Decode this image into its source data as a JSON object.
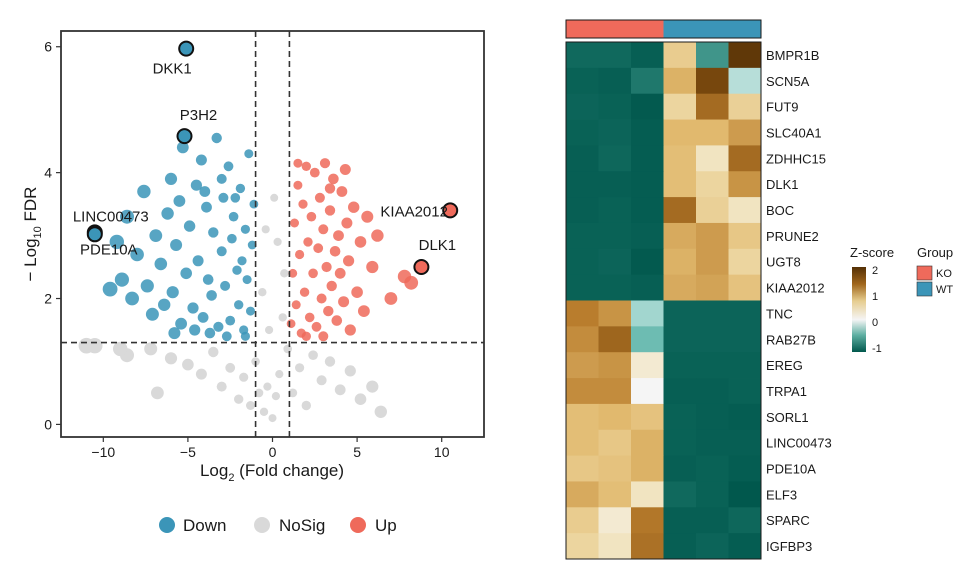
{
  "colors": {
    "down": "#3b95b8",
    "nosig": "#d9d9d9",
    "up": "#ef6a5b",
    "ko": "#ef6a5b",
    "wt": "#3b95b8",
    "heat_low": "#01584d",
    "heat_mid": "#f5f5f5",
    "heat_high": "#543005"
  },
  "chart_data": [
    {
      "type": "scatter",
      "title": "",
      "xlabel_main": "Log",
      "xlabel_sub": "2",
      "xlabel_tail": " (Fold change)",
      "ylabel_lead": "− Log",
      "ylabel_sub": "10",
      "ylabel_tail": " FDR",
      "xlim": [
        -12.5,
        12.5
      ],
      "ylim": [
        -0.2,
        6.25
      ],
      "xticks": [
        -10,
        -5,
        0,
        5,
        10
      ],
      "yticks": [
        0,
        2,
        4,
        6
      ],
      "fc_cutoff": [
        -1,
        1
      ],
      "fdr_cutoff": 1.3,
      "legend": {
        "position": "bottom",
        "entries": [
          {
            "label": "Down",
            "color_key": "down"
          },
          {
            "label": "NoSig",
            "color_key": "nosig"
          },
          {
            "label": "Up",
            "color_key": "up"
          }
        ]
      },
      "series": [
        {
          "name": "Down",
          "points": [
            [
              -10.5,
              3.05
            ],
            [
              -9.6,
              2.15
            ],
            [
              -9.2,
              2.9
            ],
            [
              -8.9,
              2.3
            ],
            [
              -8.6,
              3.3
            ],
            [
              -8.3,
              2.0
            ],
            [
              -8.0,
              2.7
            ],
            [
              -7.6,
              3.7
            ],
            [
              -7.4,
              2.2
            ],
            [
              -7.1,
              1.75
            ],
            [
              -6.9,
              3.0
            ],
            [
              -6.6,
              2.55
            ],
            [
              -6.4,
              1.9
            ],
            [
              -6.2,
              3.35
            ],
            [
              -5.9,
              2.1
            ],
            [
              -5.7,
              2.85
            ],
            [
              -5.5,
              3.55
            ],
            [
              -5.4,
              1.6
            ],
            [
              -5.3,
              4.4
            ],
            [
              -5.2,
              4.58
            ],
            [
              -5.1,
              2.4
            ],
            [
              -4.9,
              3.15
            ],
            [
              -4.7,
              1.85
            ],
            [
              -4.5,
              3.8
            ],
            [
              -4.4,
              2.6
            ],
            [
              -4.2,
              4.2
            ],
            [
              -4.1,
              1.7
            ],
            [
              -3.9,
              3.45
            ],
            [
              -3.8,
              2.3
            ],
            [
              -3.6,
              2.05
            ],
            [
              -3.5,
              3.05
            ],
            [
              -3.3,
              4.55
            ],
            [
              -3.2,
              1.55
            ],
            [
              -3.0,
              2.75
            ],
            [
              -2.9,
              3.6
            ],
            [
              -2.8,
              2.2
            ],
            [
              -2.6,
              4.1
            ],
            [
              -2.5,
              1.65
            ],
            [
              -2.4,
              2.95
            ],
            [
              -2.3,
              3.3
            ],
            [
              -2.1,
              2.45
            ],
            [
              -2.0,
              1.9
            ],
            [
              -1.9,
              3.75
            ],
            [
              -1.8,
              2.6
            ],
            [
              -1.7,
              1.5
            ],
            [
              -1.6,
              3.1
            ],
            [
              -1.5,
              2.3
            ],
            [
              -1.4,
              4.3
            ],
            [
              -1.3,
              1.8
            ],
            [
              -1.2,
              2.85
            ],
            [
              -1.1,
              3.5
            ],
            [
              -6.0,
              3.9
            ],
            [
              -4.0,
              3.7
            ],
            [
              -3.0,
              3.9
            ],
            [
              -2.2,
              3.6
            ],
            [
              -1.6,
              1.4
            ],
            [
              -3.7,
              1.45
            ],
            [
              -2.7,
              1.4
            ],
            [
              -5.8,
              1.45
            ],
            [
              -4.6,
              1.5
            ]
          ]
        },
        {
          "name": "NoSig",
          "points": [
            [
              -10.5,
              1.25
            ],
            [
              -8.6,
              1.1
            ],
            [
              -7.2,
              1.2
            ],
            [
              -6.0,
              1.05
            ],
            [
              -5.0,
              0.95
            ],
            [
              -4.2,
              0.8
            ],
            [
              -3.5,
              1.15
            ],
            [
              -3.0,
              0.6
            ],
            [
              -2.5,
              0.9
            ],
            [
              -2.0,
              0.4
            ],
            [
              -1.7,
              0.75
            ],
            [
              -1.3,
              0.3
            ],
            [
              -1.0,
              1.0
            ],
            [
              -0.8,
              0.5
            ],
            [
              -0.5,
              0.2
            ],
            [
              -0.3,
              0.6
            ],
            [
              0.0,
              0.1
            ],
            [
              0.2,
              0.45
            ],
            [
              0.4,
              0.8
            ],
            [
              0.6,
              1.7
            ],
            [
              0.7,
              2.4
            ],
            [
              -0.6,
              2.1
            ],
            [
              -0.2,
              1.5
            ],
            [
              0.3,
              2.9
            ],
            [
              -0.4,
              3.1
            ],
            [
              0.1,
              3.6
            ],
            [
              0.9,
              1.2
            ],
            [
              1.2,
              0.5
            ],
            [
              1.6,
              0.9
            ],
            [
              2.0,
              0.3
            ],
            [
              2.4,
              1.1
            ],
            [
              2.9,
              0.7
            ],
            [
              3.4,
              1.0
            ],
            [
              4.0,
              0.55
            ],
            [
              4.6,
              0.85
            ],
            [
              5.2,
              0.4
            ],
            [
              5.9,
              0.6
            ],
            [
              6.4,
              0.2
            ],
            [
              -6.8,
              0.5
            ],
            [
              -9.0,
              1.2
            ],
            [
              -11.0,
              1.25
            ]
          ]
        },
        {
          "name": "Up",
          "points": [
            [
              1.1,
              1.6
            ],
            [
              1.2,
              2.4
            ],
            [
              1.3,
              3.2
            ],
            [
              1.4,
              1.9
            ],
            [
              1.5,
              3.8
            ],
            [
              1.6,
              2.7
            ],
            [
              1.7,
              1.45
            ],
            [
              1.8,
              3.5
            ],
            [
              1.9,
              2.1
            ],
            [
              2.0,
              4.1
            ],
            [
              2.1,
              2.9
            ],
            [
              2.2,
              1.7
            ],
            [
              2.3,
              3.3
            ],
            [
              2.4,
              2.4
            ],
            [
              2.5,
              4.0
            ],
            [
              2.6,
              1.55
            ],
            [
              2.7,
              2.8
            ],
            [
              2.8,
              3.6
            ],
            [
              2.9,
              2.0
            ],
            [
              3.0,
              3.1
            ],
            [
              3.1,
              4.15
            ],
            [
              3.2,
              2.5
            ],
            [
              3.3,
              1.8
            ],
            [
              3.4,
              3.4
            ],
            [
              3.5,
              2.2
            ],
            [
              3.6,
              3.9
            ],
            [
              3.7,
              2.75
            ],
            [
              3.8,
              1.65
            ],
            [
              3.9,
              3.0
            ],
            [
              4.0,
              2.4
            ],
            [
              4.1,
              3.7
            ],
            [
              4.2,
              1.95
            ],
            [
              4.4,
              3.2
            ],
            [
              4.5,
              2.6
            ],
            [
              4.6,
              1.5
            ],
            [
              4.8,
              3.45
            ],
            [
              5.0,
              2.1
            ],
            [
              5.2,
              2.9
            ],
            [
              5.4,
              1.8
            ],
            [
              5.6,
              3.3
            ],
            [
              5.9,
              2.5
            ],
            [
              6.2,
              3.0
            ],
            [
              7.0,
              2.0
            ],
            [
              7.8,
              2.35
            ],
            [
              8.2,
              2.25
            ],
            [
              2.0,
              1.4
            ],
            [
              3.0,
              1.4
            ],
            [
              1.5,
              4.15
            ],
            [
              4.3,
              4.05
            ],
            [
              3.4,
              3.75
            ]
          ]
        }
      ],
      "labeled_points": [
        {
          "label": "DKK1",
          "x": -5.1,
          "y": 5.97,
          "group": "Down"
        },
        {
          "label": "P3H2",
          "x": -5.2,
          "y": 4.58,
          "group": "Down"
        },
        {
          "label": "LINC00473",
          "x": -10.5,
          "y": 3.05,
          "group": "Down"
        },
        {
          "label": "PDE10A",
          "x": -10.5,
          "y": 3.02,
          "group": "Down"
        },
        {
          "label": "KIAA2012",
          "x": 10.5,
          "y": 3.4,
          "group": "Up"
        },
        {
          "label": "DLK1",
          "x": 8.8,
          "y": 2.5,
          "group": "Up"
        }
      ]
    },
    {
      "type": "heatmap",
      "title": "",
      "rows": [
        "BMPR1B",
        "SCN5A",
        "FUT9",
        "SLC40A1",
        "ZDHHC15",
        "DLK1",
        "BOC",
        "PRUNE2",
        "UGT8",
        "KIAA2012",
        "TNC",
        "RAB27B",
        "EREG",
        "TRPA1",
        "SORL1",
        "LINC00473",
        "PDE10A",
        "ELF3",
        "SPARC",
        "IGFBP3"
      ],
      "column_groups": [
        "KO",
        "KO",
        "KO",
        "WT",
        "WT",
        "WT"
      ],
      "values": [
        [
          -0.85,
          -0.85,
          -1.05,
          0.6,
          -0.55,
          1.9
        ],
        [
          -1.0,
          -1.05,
          -0.7,
          0.85,
          1.7,
          -0.15
        ],
        [
          -0.95,
          -1.0,
          -1.15,
          0.5,
          1.35,
          0.55
        ],
        [
          -1.0,
          -0.95,
          -1.1,
          0.8,
          0.8,
          1.0
        ],
        [
          -1.05,
          -0.9,
          -1.1,
          0.75,
          0.3,
          1.35
        ],
        [
          -1.05,
          -1.05,
          -1.1,
          0.75,
          0.5,
          1.05
        ],
        [
          -1.05,
          -1.0,
          -1.1,
          1.35,
          0.55,
          0.3
        ],
        [
          -1.0,
          -1.0,
          -1.05,
          0.9,
          1.0,
          0.65
        ],
        [
          -1.0,
          -0.95,
          -1.15,
          0.85,
          1.0,
          0.5
        ],
        [
          -1.0,
          -1.0,
          -1.05,
          0.9,
          0.95,
          0.7
        ],
        [
          1.2,
          1.05,
          -0.2,
          -0.95,
          -0.95,
          -0.95
        ],
        [
          1.1,
          1.4,
          -0.35,
          -0.95,
          -0.95,
          -0.95
        ],
        [
          1.0,
          1.05,
          0.2,
          -1.0,
          -1.0,
          -1.0
        ],
        [
          1.1,
          1.1,
          0.0,
          -1.05,
          -1.05,
          -1.0
        ],
        [
          0.75,
          0.8,
          0.7,
          -1.0,
          -1.05,
          -1.1
        ],
        [
          0.75,
          0.65,
          0.85,
          -1.0,
          -1.05,
          -1.05
        ],
        [
          0.65,
          0.7,
          0.85,
          -1.05,
          -1.0,
          -1.1
        ],
        [
          0.9,
          0.75,
          0.3,
          -0.85,
          -1.0,
          -1.2
        ],
        [
          0.6,
          0.2,
          1.25,
          -1.05,
          -1.05,
          -0.9
        ],
        [
          0.5,
          0.3,
          1.3,
          -1.05,
          -0.95,
          -1.1
        ]
      ],
      "color_scale": {
        "title": "Z-score",
        "ticks": [
          "2",
          "1",
          "0",
          "-1"
        ],
        "range": [
          -1.2,
          2.0
        ]
      },
      "group_legend": {
        "title": "Group",
        "entries": [
          {
            "label": "KO",
            "color_key": "ko"
          },
          {
            "label": "WT",
            "color_key": "wt"
          }
        ]
      }
    }
  ]
}
